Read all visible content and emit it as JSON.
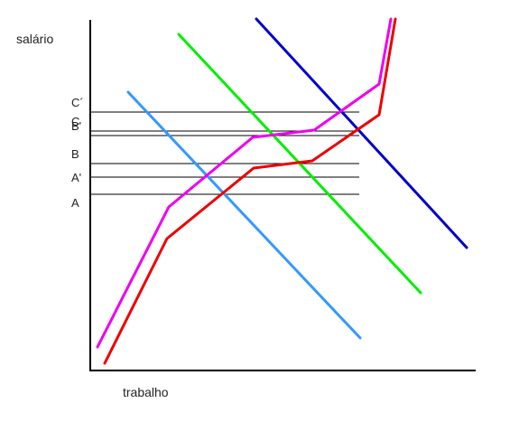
{
  "chart_data": {
    "type": "line",
    "xlabel": "trabalho",
    "ylabel": "salário",
    "grid": false,
    "legend": "none",
    "y_markers": [
      {
        "label": "C´",
        "y": 124
      },
      {
        "label": "C",
        "y": 145
      },
      {
        "label": "B'",
        "y": 150
      },
      {
        "label": "B",
        "y": 181
      },
      {
        "label": "A'",
        "y": 196
      },
      {
        "label": "A",
        "y": 215
      }
    ],
    "series": [
      {
        "color": "#3399ff",
        "points": [
          [
            142,
            102
          ],
          [
            399,
            374
          ]
        ]
      },
      {
        "color": "#00ee00",
        "points": [
          [
            198,
            38
          ],
          [
            466,
            324
          ]
        ]
      },
      {
        "color": "#0000cc",
        "points": [
          [
            284,
            21
          ],
          [
            517,
            274
          ]
        ]
      },
      {
        "color": "#ee00ee",
        "points": [
          [
            108,
            384
          ],
          [
            187,
            229
          ],
          [
            280,
            152
          ],
          [
            348,
            144
          ],
          [
            420,
            93
          ],
          [
            433,
            21
          ]
        ]
      },
      {
        "color": "#ee0000",
        "points": [
          [
            116,
            402
          ],
          [
            185,
            264
          ],
          [
            281,
            186
          ],
          [
            346,
            178
          ],
          [
            420,
            127
          ],
          [
            438,
            21
          ]
        ]
      }
    ]
  }
}
